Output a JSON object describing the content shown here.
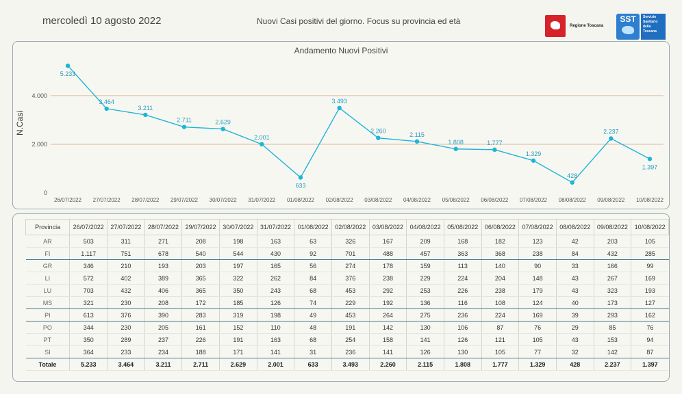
{
  "header": {
    "date": "mercoledì 10 agosto 2022",
    "subtitle": "Nuovi Casi positivi del giorno. Focus su provincia ed età",
    "logo_regione": "Regione Toscana",
    "logo_sst_short": "SST",
    "logo_sst_lines": [
      "Servizio",
      "Sanitario",
      "della",
      "Toscana"
    ]
  },
  "colors": {
    "line": "#1fb4d8",
    "gridline": "#d9a98a",
    "panel_border": "#9aa8b0",
    "accent_rule": "#4a7a90"
  },
  "chart_data": {
    "type": "line",
    "title": "Andamento Nuovi Positivi",
    "ylabel": "N.Casi",
    "xlabel": "",
    "ylim": [
      0,
      5600
    ],
    "yticks": [
      "0",
      "2.000",
      "4.000"
    ],
    "ytick_values": [
      0,
      2000,
      4000
    ],
    "grid": "horizontal",
    "categories": [
      "26/07/2022",
      "27/07/2022",
      "28/07/2022",
      "29/07/2022",
      "30/07/2022",
      "31/07/2022",
      "01/08/2022",
      "02/08/2022",
      "03/08/2022",
      "04/08/2022",
      "05/08/2022",
      "06/08/2022",
      "07/08/2022",
      "08/08/2022",
      "09/08/2022",
      "10/08/2022"
    ],
    "values": [
      5233,
      3464,
      3211,
      2711,
      2629,
      2001,
      633,
      3493,
      2260,
      2115,
      1808,
      1777,
      1329,
      428,
      2237,
      1397
    ],
    "labels": [
      "5.233",
      "3.464",
      "3.211",
      "2.711",
      "2.629",
      "2.001",
      "633",
      "3.493",
      "2.260",
      "2.115",
      "1.808",
      "1.777",
      "1.329",
      "428",
      "2.237",
      "1.397"
    ]
  },
  "table": {
    "header_label": "Provincia",
    "dates": [
      "26/07/2022",
      "27/07/2022",
      "28/07/2022",
      "29/07/2022",
      "30/07/2022",
      "31/07/2022",
      "01/08/2022",
      "02/08/2022",
      "03/08/2022",
      "04/08/2022",
      "05/08/2022",
      "06/08/2022",
      "07/08/2022",
      "08/08/2022",
      "09/08/2022",
      "10/08/2022"
    ],
    "rows": [
      {
        "provincia": "AR",
        "values": [
          "503",
          "311",
          "271",
          "208",
          "198",
          "163",
          "63",
          "326",
          "167",
          "209",
          "168",
          "182",
          "123",
          "42",
          "203",
          "105"
        ]
      },
      {
        "provincia": "FI",
        "values": [
          "1.117",
          "751",
          "678",
          "540",
          "544",
          "430",
          "92",
          "701",
          "488",
          "457",
          "363",
          "368",
          "238",
          "84",
          "432",
          "285"
        ]
      },
      {
        "provincia": "GR",
        "values": [
          "346",
          "210",
          "193",
          "203",
          "197",
          "165",
          "56",
          "274",
          "178",
          "159",
          "113",
          "140",
          "90",
          "33",
          "166",
          "99"
        ]
      },
      {
        "provincia": "LI",
        "values": [
          "572",
          "402",
          "389",
          "365",
          "322",
          "262",
          "84",
          "376",
          "238",
          "229",
          "224",
          "204",
          "148",
          "43",
          "267",
          "169"
        ]
      },
      {
        "provincia": "LU",
        "values": [
          "703",
          "432",
          "406",
          "365",
          "350",
          "243",
          "68",
          "453",
          "292",
          "253",
          "226",
          "238",
          "179",
          "43",
          "323",
          "193"
        ]
      },
      {
        "provincia": "MS",
        "values": [
          "321",
          "230",
          "208",
          "172",
          "185",
          "126",
          "74",
          "229",
          "192",
          "136",
          "116",
          "108",
          "124",
          "40",
          "173",
          "127"
        ]
      },
      {
        "provincia": "PI",
        "values": [
          "613",
          "376",
          "390",
          "283",
          "319",
          "198",
          "49",
          "453",
          "264",
          "275",
          "236",
          "224",
          "169",
          "39",
          "293",
          "162"
        ]
      },
      {
        "provincia": "PO",
        "values": [
          "344",
          "230",
          "205",
          "161",
          "152",
          "110",
          "48",
          "191",
          "142",
          "130",
          "106",
          "87",
          "76",
          "29",
          "85",
          "76"
        ]
      },
      {
        "provincia": "PT",
        "values": [
          "350",
          "289",
          "237",
          "226",
          "191",
          "163",
          "68",
          "254",
          "158",
          "141",
          "126",
          "121",
          "105",
          "43",
          "153",
          "94"
        ]
      },
      {
        "provincia": "SI",
        "values": [
          "364",
          "233",
          "234",
          "188",
          "171",
          "141",
          "31",
          "236",
          "141",
          "126",
          "130",
          "105",
          "77",
          "32",
          "142",
          "87"
        ]
      }
    ],
    "total": {
      "provincia": "Totale",
      "values": [
        "5.233",
        "3.464",
        "3.211",
        "2.711",
        "2.629",
        "2.001",
        "633",
        "3.493",
        "2.260",
        "2.115",
        "1.808",
        "1.777",
        "1.329",
        "428",
        "2.237",
        "1.397"
      ]
    }
  }
}
